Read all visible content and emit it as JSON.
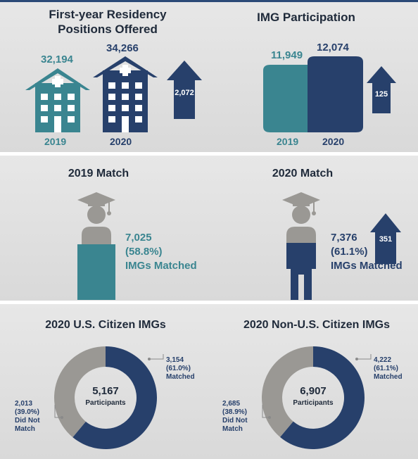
{
  "colors": {
    "teal": "#3a8590",
    "navy": "#27406b",
    "gray": "#9a9894",
    "band": "#e0e0e0"
  },
  "residency": {
    "title_line1": "First-year Residency",
    "title_line2": "Positions Offered",
    "val_2019": "32,194",
    "val_2020": "34,266",
    "year_2019": "2019",
    "year_2020": "2020",
    "increase": "2,072",
    "icons": [
      "hospital-icon",
      "hospital-icon",
      "up-arrow-icon"
    ]
  },
  "img_participation": {
    "title": "IMG Participation",
    "val_2019": "11,949",
    "val_2020": "12,074",
    "year_2019": "2019",
    "year_2020": "2020",
    "increase": "125"
  },
  "match_2019": {
    "title": "2019 Match",
    "count": "7,025",
    "pct": "(58.8%)",
    "label": "IMGs Matched",
    "fill_fraction": 0.588
  },
  "match_2020": {
    "title": "2020 Match",
    "count": "7,376",
    "pct": "(61.1%)",
    "label": "IMGs Matched",
    "increase": "351",
    "fill_fraction": 0.611
  },
  "chart_data": [
    {
      "type": "pie",
      "title": "2020 U.S. Citizen IMGs",
      "center_value": "5,167",
      "center_label": "Participants",
      "slices": [
        {
          "name": "Matched",
          "value": 3154,
          "pct": 61.0,
          "label_lines": [
            "3,154",
            "(61.0%)",
            "Matched"
          ]
        },
        {
          "name": "Did Not Match",
          "value": 2013,
          "pct": 39.0,
          "label_lines": [
            "2,013",
            "(39.0%)",
            "Did Not",
            "Match"
          ]
        }
      ]
    },
    {
      "type": "pie",
      "title": "2020 Non-U.S. Citizen IMGs",
      "center_value": "6,907",
      "center_label": "Participants",
      "slices": [
        {
          "name": "Matched",
          "value": 4222,
          "pct": 61.1,
          "label_lines": [
            "4,222",
            "(61.1%)",
            "Matched"
          ]
        },
        {
          "name": "Did Not Match",
          "value": 2685,
          "pct": 38.9,
          "label_lines": [
            "2,685",
            "(38.9%)",
            "Did Not",
            "Match"
          ]
        }
      ]
    }
  ]
}
